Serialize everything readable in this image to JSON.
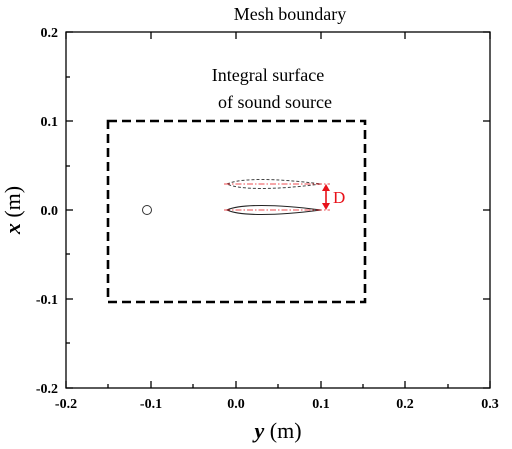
{
  "top_label": "Mesh boundary",
  "box_label_line1": "Integral surface",
  "box_label_line2": "of sound source",
  "x_axis": {
    "var": "y",
    "unit": " (m)",
    "ticks": [
      "-0.2",
      "-0.1",
      "0.0",
      "0.1",
      "0.2",
      "0.3"
    ],
    "range": [
      -0.2,
      0.3
    ]
  },
  "y_axis": {
    "var": "x",
    "unit": " (m)",
    "ticks": [
      "-0.2",
      "-0.1",
      "0.0",
      "0.1",
      "0.2"
    ],
    "range": [
      -0.2,
      0.2
    ]
  },
  "gap_label": "D",
  "colors": {
    "gap_annotation": "#e8121a",
    "centerline": "#e8121a",
    "axes": "#000000"
  }
}
